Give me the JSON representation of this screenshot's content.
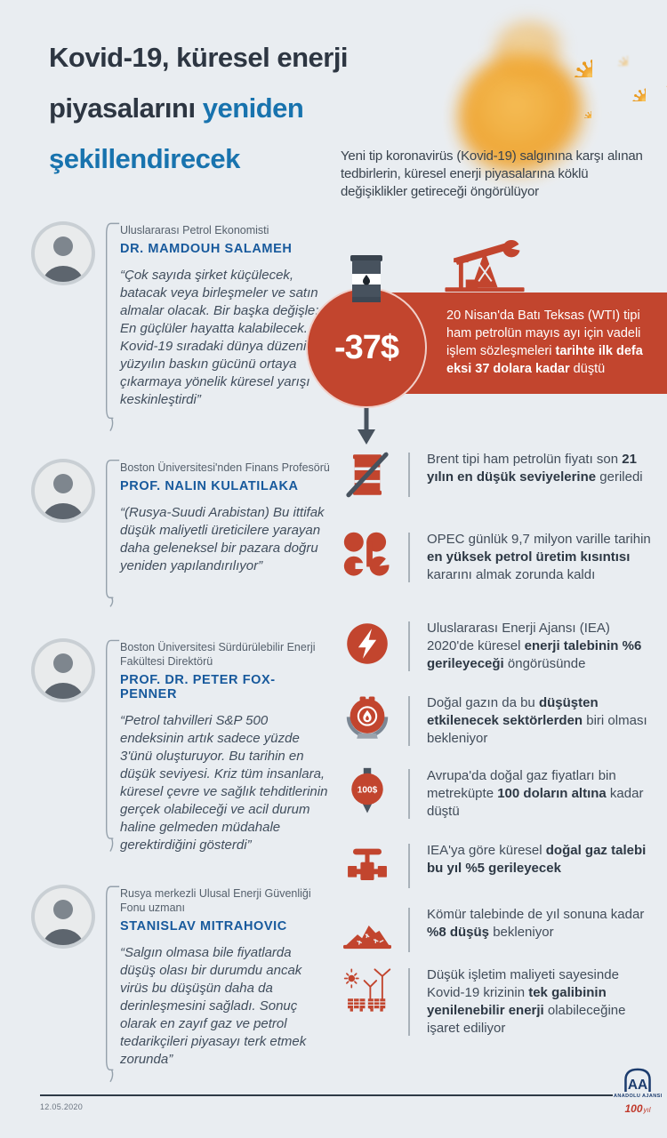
{
  "header": {
    "title_lines": [
      {
        "parts": [
          {
            "t": "Kovid-19, küresel enerji",
            "blue": false
          }
        ]
      },
      {
        "parts": [
          {
            "t": "piyasalarını ",
            "blue": false
          },
          {
            "t": "yeniden",
            "blue": true
          }
        ]
      },
      {
        "parts": [
          {
            "t": "şekillendirecek",
            "blue": true
          }
        ]
      }
    ],
    "subtitle": "Yeni tip koronavirüs (Kovid-19) salgınına karşı alınan tedbirlerin, küresel enerji piyasalarına köklü değişiklikler getireceği öngörülüyor"
  },
  "experts": [
    {
      "role": "Uluslararası Petrol Ekonomisti",
      "name": "DR. MAMDOUH SALAMEH",
      "quote": "“Çok sayıda şirket küçülecek, batacak veya birleşmeler ve satın almalar olacak. Bir başka değişle: En güçlüler hayatta kalabilecek. Kovid-19 sıradaki dünya düzeni 21. yüzyılın baskın gücünü ortaya çıkarmaya yönelik küresel yarışı keskinleştirdi”"
    },
    {
      "role": "Boston Üniversitesi'nden Finans Profesörü",
      "name": "PROF. NALIN KULATILAKA",
      "quote": "“(Rusya-Suudi Arabistan) Bu ittifak düşük maliyetli üreticilere yarayan daha geleneksel bir pazara doğru yeniden yapılandırılıyor”"
    },
    {
      "role": "Boston Üniversitesi Sürdürülebilir Enerji Fakültesi Direktörü",
      "name": "PROF. DR. PETER FOX-PENNER",
      "quote": "“Petrol tahvilleri S&P 500 endeksinin artık sadece yüzde 3'ünü oluşturuyor. Bu tarihin en düşük seviyesi. Kriz tüm insanlara, küresel çevre ve sağlık tehditlerinin gerçek olabileceği ve acil durum haline gelmeden müdahale gerektirdiğini gösterdi”"
    },
    {
      "role": "Rusya merkezli Ulusal Enerji Güvenliği Fonu uzmanı",
      "name": "STANISLAV MITRAHOVIC",
      "quote": "“Salgın olmasa bile fiyatlarda düşüş olası bir durumdu ancak virüs bu düşüşün daha da derinleşmesini sağladı. Sonuç olarak en zayıf gaz ve petrol tedarikçileri piyasayı terk etmek zorunda”"
    }
  ],
  "highlight": {
    "price": "-37$",
    "banner_segments": [
      {
        "t": "20 Nisan'da Batı Teksas (WTI) tipi ham petrolün mayıs ayı için vadeli işlem sözleşmeleri ",
        "b": false
      },
      {
        "t": "tarihte ilk defa eksi 37 dolara kadar",
        "b": true
      },
      {
        "t": " düştü",
        "b": false
      }
    ]
  },
  "facts": [
    {
      "icon": "oil-barrel-crossed-icon",
      "segments": [
        {
          "t": "Brent tipi ham petrolün fiyatı son ",
          "b": false
        },
        {
          "t": "21 yılın en düşük seviyelerine",
          "b": true
        },
        {
          "t": " geriledi",
          "b": false
        }
      ]
    },
    {
      "icon": "opec-logo-icon",
      "segments": [
        {
          "t": "OPEC günlük 9,7 milyon varille tarihin ",
          "b": false
        },
        {
          "t": "en yüksek petrol üretim kısıntısı",
          "b": true
        },
        {
          "t": " kararını almak zorunda kaldı",
          "b": false
        }
      ]
    },
    {
      "icon": "lightning-bolt-icon",
      "segments": [
        {
          "t": "Uluslararası Enerji Ajansı (IEA) 2020'de küresel ",
          "b": false
        },
        {
          "t": "enerji talebinin %6 gerileyeceği",
          "b": true
        },
        {
          "t": " öngörüsünde",
          "b": false
        }
      ]
    },
    {
      "icon": "gas-tank-icon",
      "segments": [
        {
          "t": "Doğal gazın da bu ",
          "b": false
        },
        {
          "t": "düşüşten etkilenecek sektörlerden",
          "b": true
        },
        {
          "t": " biri olması bekleniyor",
          "b": false
        }
      ]
    },
    {
      "icon": "gas-price-icon",
      "segments": [
        {
          "t": "Avrupa'da doğal gaz fiyatları bin metreküpte ",
          "b": false
        },
        {
          "t": "100 doların altına",
          "b": true
        },
        {
          "t": " kadar düştü",
          "b": false
        }
      ]
    },
    {
      "icon": "pipeline-valve-icon",
      "segments": [
        {
          "t": "IEA'ya göre küresel ",
          "b": false
        },
        {
          "t": "doğal gaz talebi bu yıl %5 gerileyecek",
          "b": true
        }
      ]
    },
    {
      "icon": "coal-pile-icon",
      "segments": [
        {
          "t": "Kömür talebinde de yıl sonuna kadar ",
          "b": false
        },
        {
          "t": "%8 düşüş",
          "b": true
        },
        {
          "t": " bekleniyor",
          "b": false
        }
      ]
    },
    {
      "icon": "renewable-energy-icon",
      "segments": [
        {
          "t": "Düşük işletim maliyeti sayesinde Kovid-19 krizinin ",
          "b": false
        },
        {
          "t": "tek galibinin yenilenebilir enerji",
          "b": true
        },
        {
          "t": " olabileceğine işaret ediliyor",
          "b": false
        }
      ]
    }
  ],
  "footer": {
    "date": "12.05.2020",
    "agency": "ANADOLU AJANSI",
    "centenary": "100",
    "centenary_suffix": "yıl"
  },
  "colors": {
    "background": "#e9edf1",
    "accent_red": "#c2452e",
    "accent_blue": "#1873ae",
    "name_blue": "#17599c",
    "slate": "#47525e",
    "virus_orange": "#efa22c"
  }
}
